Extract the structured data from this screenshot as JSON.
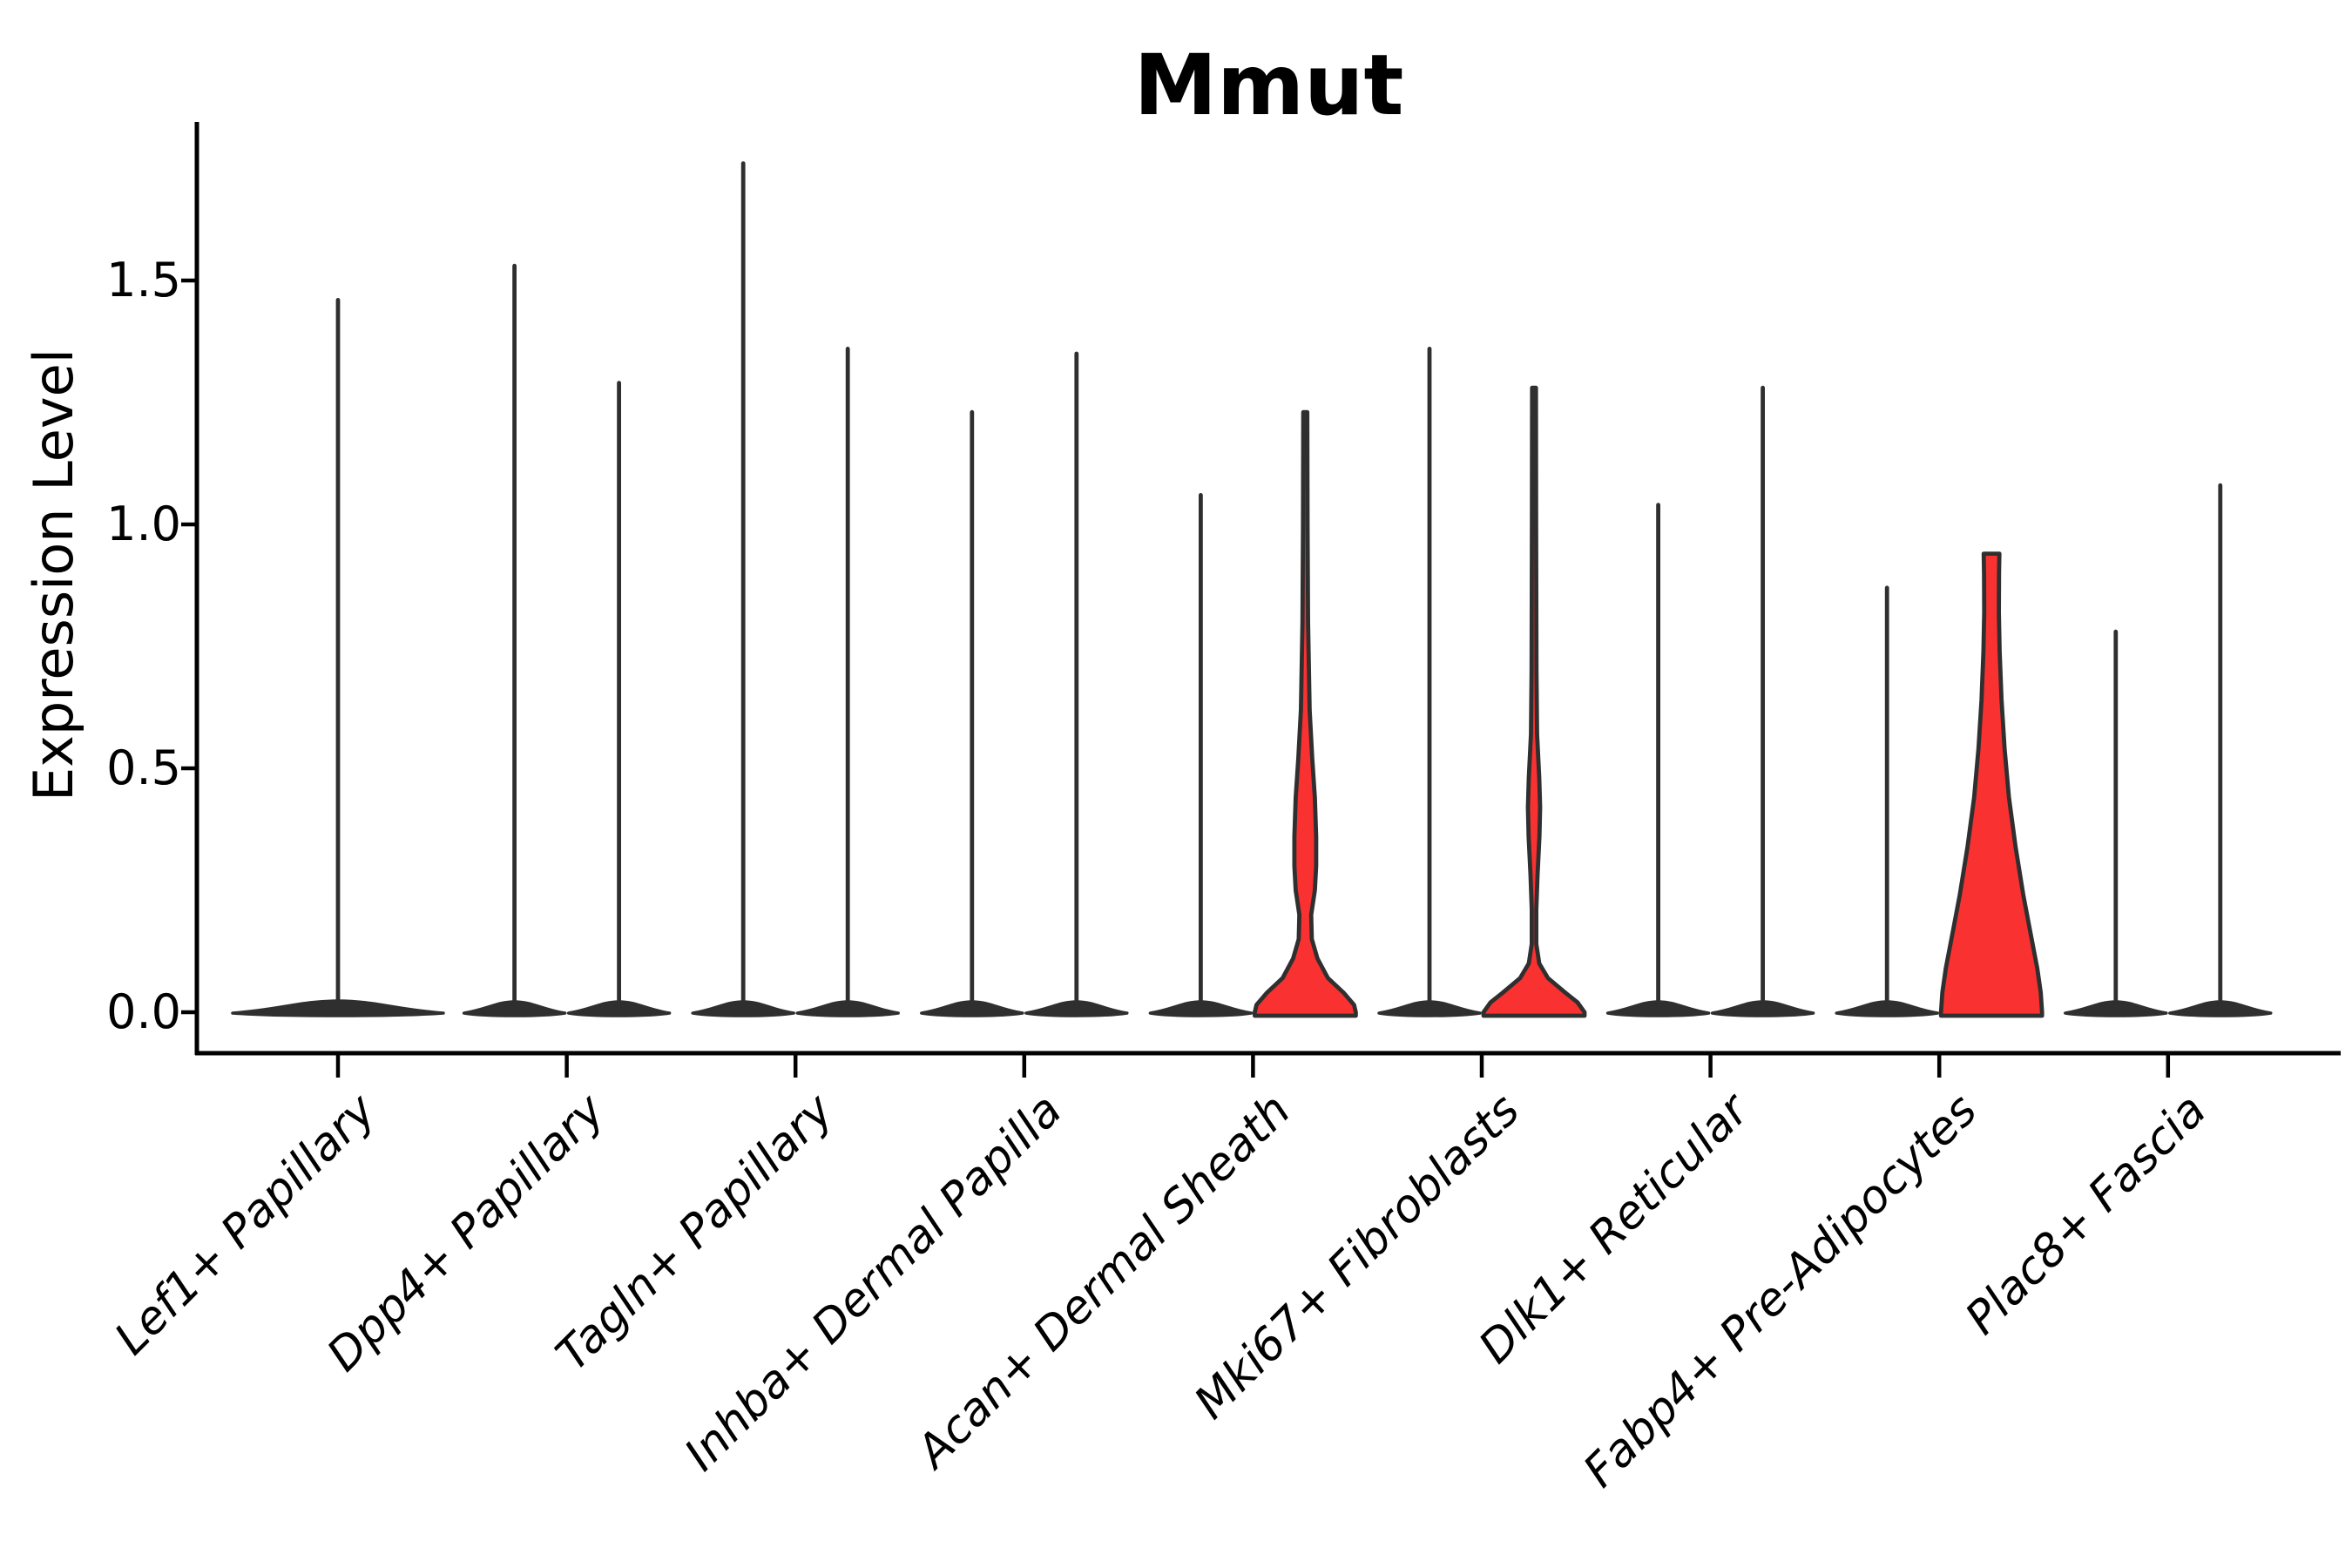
{
  "title": "Mmut",
  "y_axis": {
    "label": "Expression Level",
    "tick_labels": [
      "0.0",
      "0.5",
      "1.0",
      "1.5"
    ]
  },
  "colors": {
    "highlight_fill": "#fa3131",
    "violin_stroke": "#2f2f2f",
    "axis_color": "#000000"
  },
  "chart_data": {
    "type": "violin",
    "title": "Mmut",
    "ylabel": "Expression Level",
    "ylim": [
      0,
      1.825
    ],
    "yticks": [
      0.0,
      0.5,
      1.0,
      1.5
    ],
    "grid": false,
    "legend": "none",
    "categories": [
      "Lef1+ Papillary",
      "Dpp4+ Papillary",
      "Tagln+ Papillary",
      "Inhba+ Dermal Papilla",
      "Acan+ Dermal Sheath",
      "Mki67+ Fibroblasts",
      "Dlk1+ Reticular",
      "Fabp4+ Pre-Adipocytes",
      "Plac8+ Fascia"
    ],
    "violins": [
      {
        "category": 0,
        "group": "single",
        "max_expression": 1.46,
        "highlighted": false,
        "half_width": 121
      },
      {
        "category": 1,
        "group": "left",
        "max_expression": 1.53,
        "highlighted": false,
        "half_width": 58
      },
      {
        "category": 1,
        "group": "right",
        "max_expression": 1.29,
        "highlighted": false,
        "half_width": 58
      },
      {
        "category": 2,
        "group": "left",
        "max_expression": 1.74,
        "highlighted": false,
        "half_width": 58
      },
      {
        "category": 2,
        "group": "right",
        "max_expression": 1.36,
        "highlighted": false,
        "half_width": 58
      },
      {
        "category": 3,
        "group": "left",
        "max_expression": 1.23,
        "highlighted": false,
        "half_width": 58
      },
      {
        "category": 3,
        "group": "right",
        "max_expression": 1.35,
        "highlighted": false,
        "half_width": 58
      },
      {
        "category": 4,
        "group": "left",
        "max_expression": 1.06,
        "highlighted": false,
        "half_width": 58
      },
      {
        "category": 4,
        "group": "right",
        "max_expression": 1.23,
        "highlighted": true,
        "half_width": 58,
        "shape": [
          [
            1.23,
            2.3
          ],
          [
            1.0,
            2.6
          ],
          [
            0.8,
            3.2
          ],
          [
            0.62,
            5.0
          ],
          [
            0.52,
            8.0
          ],
          [
            0.44,
            11.0
          ],
          [
            0.36,
            12.5
          ],
          [
            0.3,
            12.5
          ],
          [
            0.25,
            11.0
          ],
          [
            0.2,
            6.8
          ],
          [
            0.15,
            7.5
          ],
          [
            0.11,
            14.0
          ],
          [
            0.07,
            26.0
          ],
          [
            0.04,
            44.0
          ],
          [
            0.015,
            56.0
          ],
          [
            0,
            58.0
          ]
        ]
      },
      {
        "category": 5,
        "group": "left",
        "max_expression": 1.36,
        "highlighted": false,
        "half_width": 58
      },
      {
        "category": 5,
        "group": "right",
        "max_expression": 1.28,
        "highlighted": true,
        "half_width": 58,
        "shape": [
          [
            1.28,
            2.2
          ],
          [
            1.0,
            2.4
          ],
          [
            0.7,
            2.8
          ],
          [
            0.57,
            3.5
          ],
          [
            0.48,
            6.0
          ],
          [
            0.42,
            7.0
          ],
          [
            0.36,
            6.2
          ],
          [
            0.28,
            4.0
          ],
          [
            0.21,
            2.6
          ],
          [
            0.14,
            2.6
          ],
          [
            0.1,
            6.0
          ],
          [
            0.07,
            16.0
          ],
          [
            0.04,
            36.0
          ],
          [
            0.02,
            50.0
          ],
          [
            0,
            58.0
          ]
        ]
      },
      {
        "category": 6,
        "group": "left",
        "max_expression": 1.04,
        "highlighted": false,
        "half_width": 58
      },
      {
        "category": 6,
        "group": "right",
        "max_expression": 1.28,
        "highlighted": false,
        "half_width": 58
      },
      {
        "category": 7,
        "group": "left",
        "max_expression": 0.87,
        "highlighted": false,
        "half_width": 58
      },
      {
        "category": 7,
        "group": "right",
        "max_expression": 0.94,
        "highlighted": true,
        "half_width": 58,
        "shape": [
          [
            0.94,
            9.0
          ],
          [
            0.9,
            8.6
          ],
          [
            0.82,
            8.4
          ],
          [
            0.74,
            9.3
          ],
          [
            0.64,
            11.5
          ],
          [
            0.54,
            15.0
          ],
          [
            0.44,
            20.0
          ],
          [
            0.34,
            27.5
          ],
          [
            0.24,
            36.5
          ],
          [
            0.16,
            45.0
          ],
          [
            0.09,
            52.5
          ],
          [
            0.04,
            56.5
          ],
          [
            0,
            58.0
          ]
        ]
      },
      {
        "category": 8,
        "group": "left",
        "max_expression": 0.78,
        "highlighted": false,
        "half_width": 58
      },
      {
        "category": 8,
        "group": "right",
        "max_expression": 1.08,
        "highlighted": false,
        "half_width": 58
      }
    ]
  }
}
